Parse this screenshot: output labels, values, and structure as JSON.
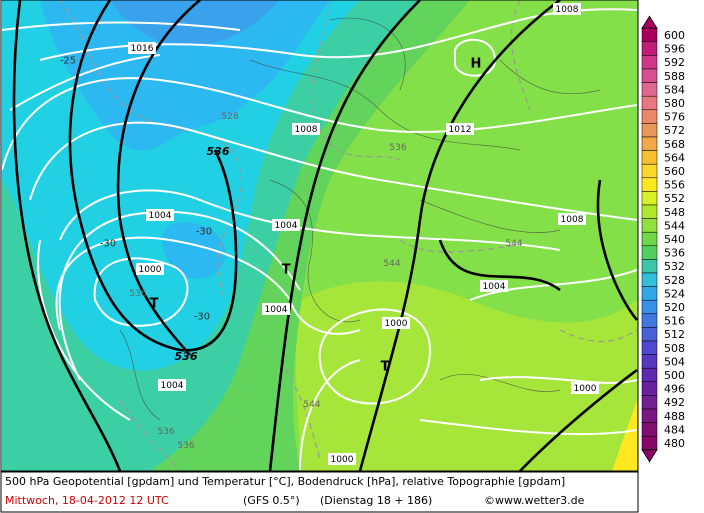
{
  "map": {
    "labels": [
      "-25",
      "1016",
      "1008",
      "H",
      "528",
      "1008",
      "1012",
      "536",
      "536",
      "1004",
      "-30",
      "1004",
      "-30",
      "1008",
      "544",
      "1000",
      "T",
      "544",
      "536",
      "T",
      "1004",
      "-30",
      "1004",
      "1000",
      "536",
      "T",
      "1004",
      "1000",
      "544",
      "536",
      "536",
      "1000"
    ]
  },
  "colorbar": {
    "levels": [
      600,
      596,
      592,
      588,
      584,
      580,
      576,
      572,
      568,
      564,
      560,
      556,
      552,
      548,
      544,
      540,
      536,
      532,
      528,
      524,
      520,
      516,
      512,
      508,
      504,
      500,
      496,
      492,
      488,
      484,
      480
    ],
    "colors": [
      "#a8005c",
      "#c01c78",
      "#d03888",
      "#d85090",
      "#e06890",
      "#e87880",
      "#e88868",
      "#e89858",
      "#f0a848",
      "#f8c030",
      "#fcd828",
      "#ffe820",
      "#d8f028",
      "#b0e830",
      "#90e040",
      "#70d848",
      "#50d060",
      "#3cc8a8",
      "#30c0d8",
      "#30a8e8",
      "#3890e8",
      "#4078e0",
      "#4860d8",
      "#5048d0",
      "#5838c0",
      "#6028b0",
      "#6820a0",
      "#702090",
      "#781880",
      "#801070",
      "#880868"
    ]
  },
  "footer": {
    "line1": "500 hPa Geopotential [gpdam] und Temperatur [°C], Bodendruck [hPa], relative Topographie [gpdam]",
    "date": "Mittwoch, 18-04-2012  12 UTC",
    "model": "(GFS 0.5°)",
    "run": "(Dienstag 18 + 186)",
    "credit": "©www.wetter3.de"
  }
}
